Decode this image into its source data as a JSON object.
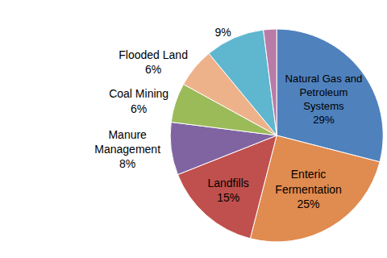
{
  "chart_data": {
    "type": "pie",
    "categories": [
      "Natural Gas and Petroleum Systems",
      "Enteric Fermentation",
      "Landfills",
      "Manure Management",
      "Coal Mining",
      "Flooded Land",
      null,
      null
    ],
    "values": [
      29,
      25,
      15,
      8,
      6,
      6,
      9,
      2
    ],
    "value_labels": [
      "29%",
      "25%",
      "15%",
      "8%",
      "6%",
      "6%",
      "9%",
      null
    ],
    "colors": [
      "#4f81bd",
      "#e08b4f",
      "#c0504d",
      "#8064a2",
      "#9bbb59",
      "#eeb28a",
      "#5fb6cf",
      "#b97ba8"
    ],
    "data_labels": true
  }
}
